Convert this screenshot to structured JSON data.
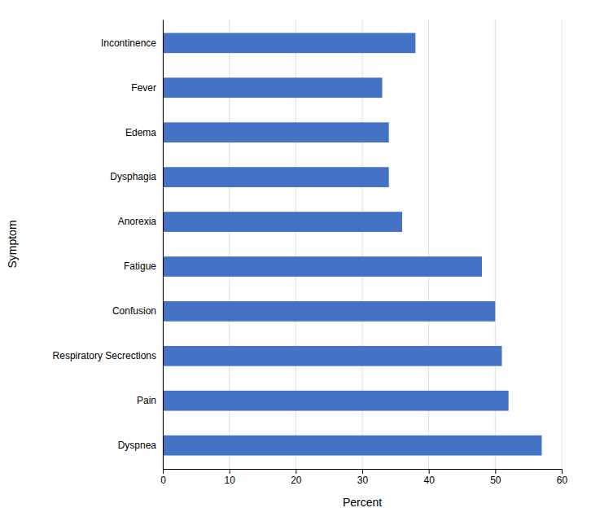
{
  "chart_data": {
    "type": "bar",
    "orientation": "horizontal",
    "categories": [
      "Dyspnea",
      "Pain",
      "Respiratory Secrections",
      "Confusion",
      "Fatigue",
      "Anorexia",
      "Dysphagia",
      "Edema",
      "Fever",
      "Incontinence"
    ],
    "values": [
      57,
      52,
      51,
      50,
      48,
      36,
      34,
      34,
      33,
      38
    ],
    "color": "#4472C4",
    "xlabel": "Percent",
    "ylabel": "Symptom",
    "xlim": [
      0,
      60
    ],
    "xticks": [
      0,
      10,
      20,
      30,
      40,
      50,
      60
    ],
    "grid": true
  }
}
